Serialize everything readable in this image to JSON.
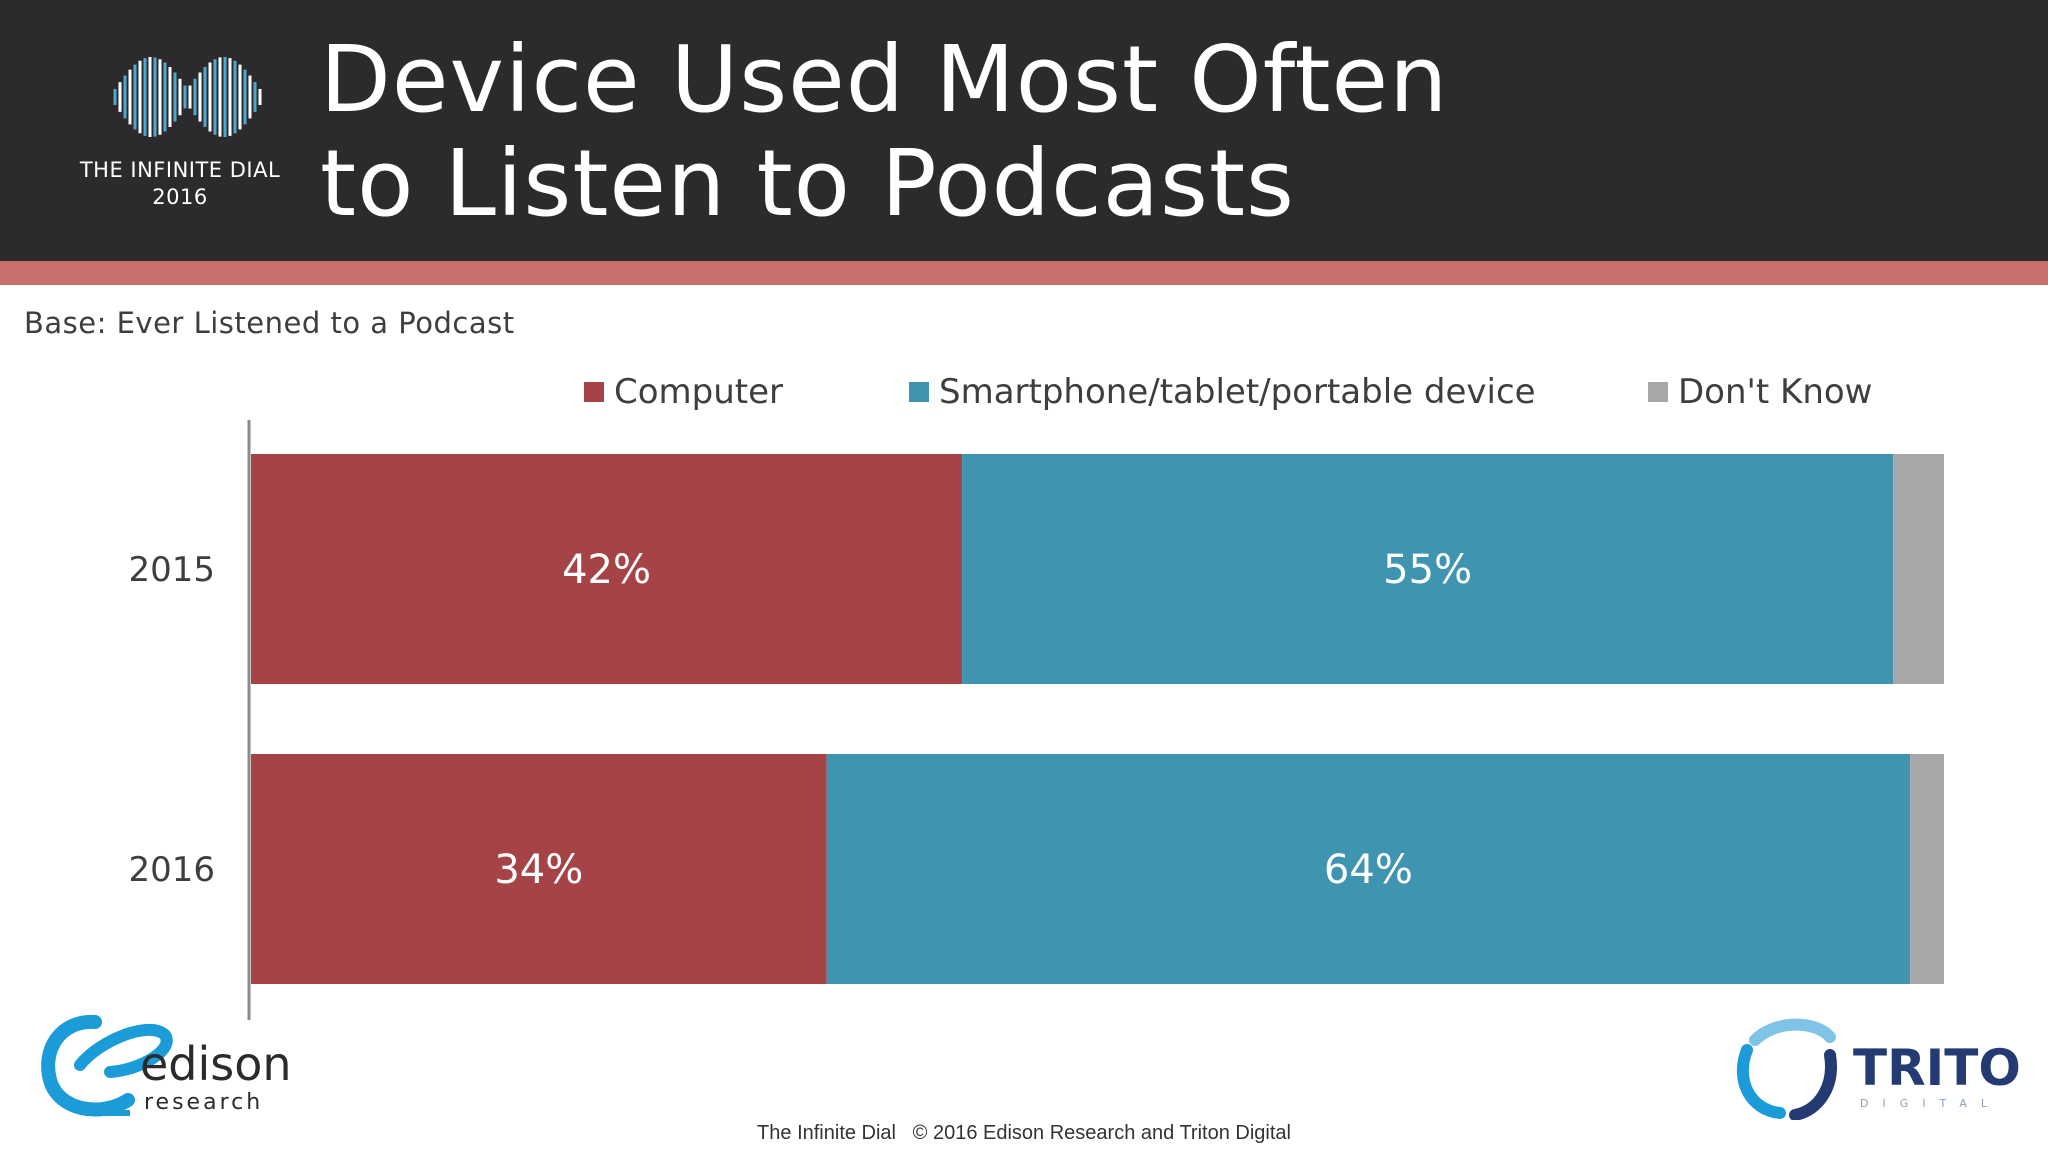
{
  "header": {
    "brand_line1": "THE INFINITE DIAL",
    "brand_line2": "2016",
    "title_line1": "Device Used Most Often",
    "title_line2": "to Listen to Podcasts"
  },
  "base_note": "Base: Ever Listened to a Podcast",
  "chart_data": {
    "type": "bar",
    "orientation": "horizontal",
    "stacked": true,
    "title": "Device Used Most Often to Listen to Podcasts",
    "categories": [
      "2015",
      "2016"
    ],
    "series": [
      {
        "name": "Computer",
        "values": [
          42,
          34
        ],
        "labels": [
          "42%",
          "34%"
        ],
        "color": "#a54346"
      },
      {
        "name": "Smartphone/tablet/portable device",
        "values": [
          55,
          64
        ],
        "labels": [
          "55%",
          "64%"
        ],
        "color": "#3f94b0"
      },
      {
        "name": "Don't Know",
        "values": [
          3,
          2
        ],
        "labels": [
          "",
          ""
        ],
        "color": "#a7a6a9"
      }
    ],
    "xlim": [
      0,
      100
    ],
    "legend_position": "top",
    "grid": false
  },
  "logos": {
    "edison_name": "edison",
    "edison_sub": "research",
    "triton_name": "TRITON",
    "triton_sub": "DIGITAL"
  },
  "footer": "The Infinite Dial   © 2016 Edison Research and Triton Digital"
}
